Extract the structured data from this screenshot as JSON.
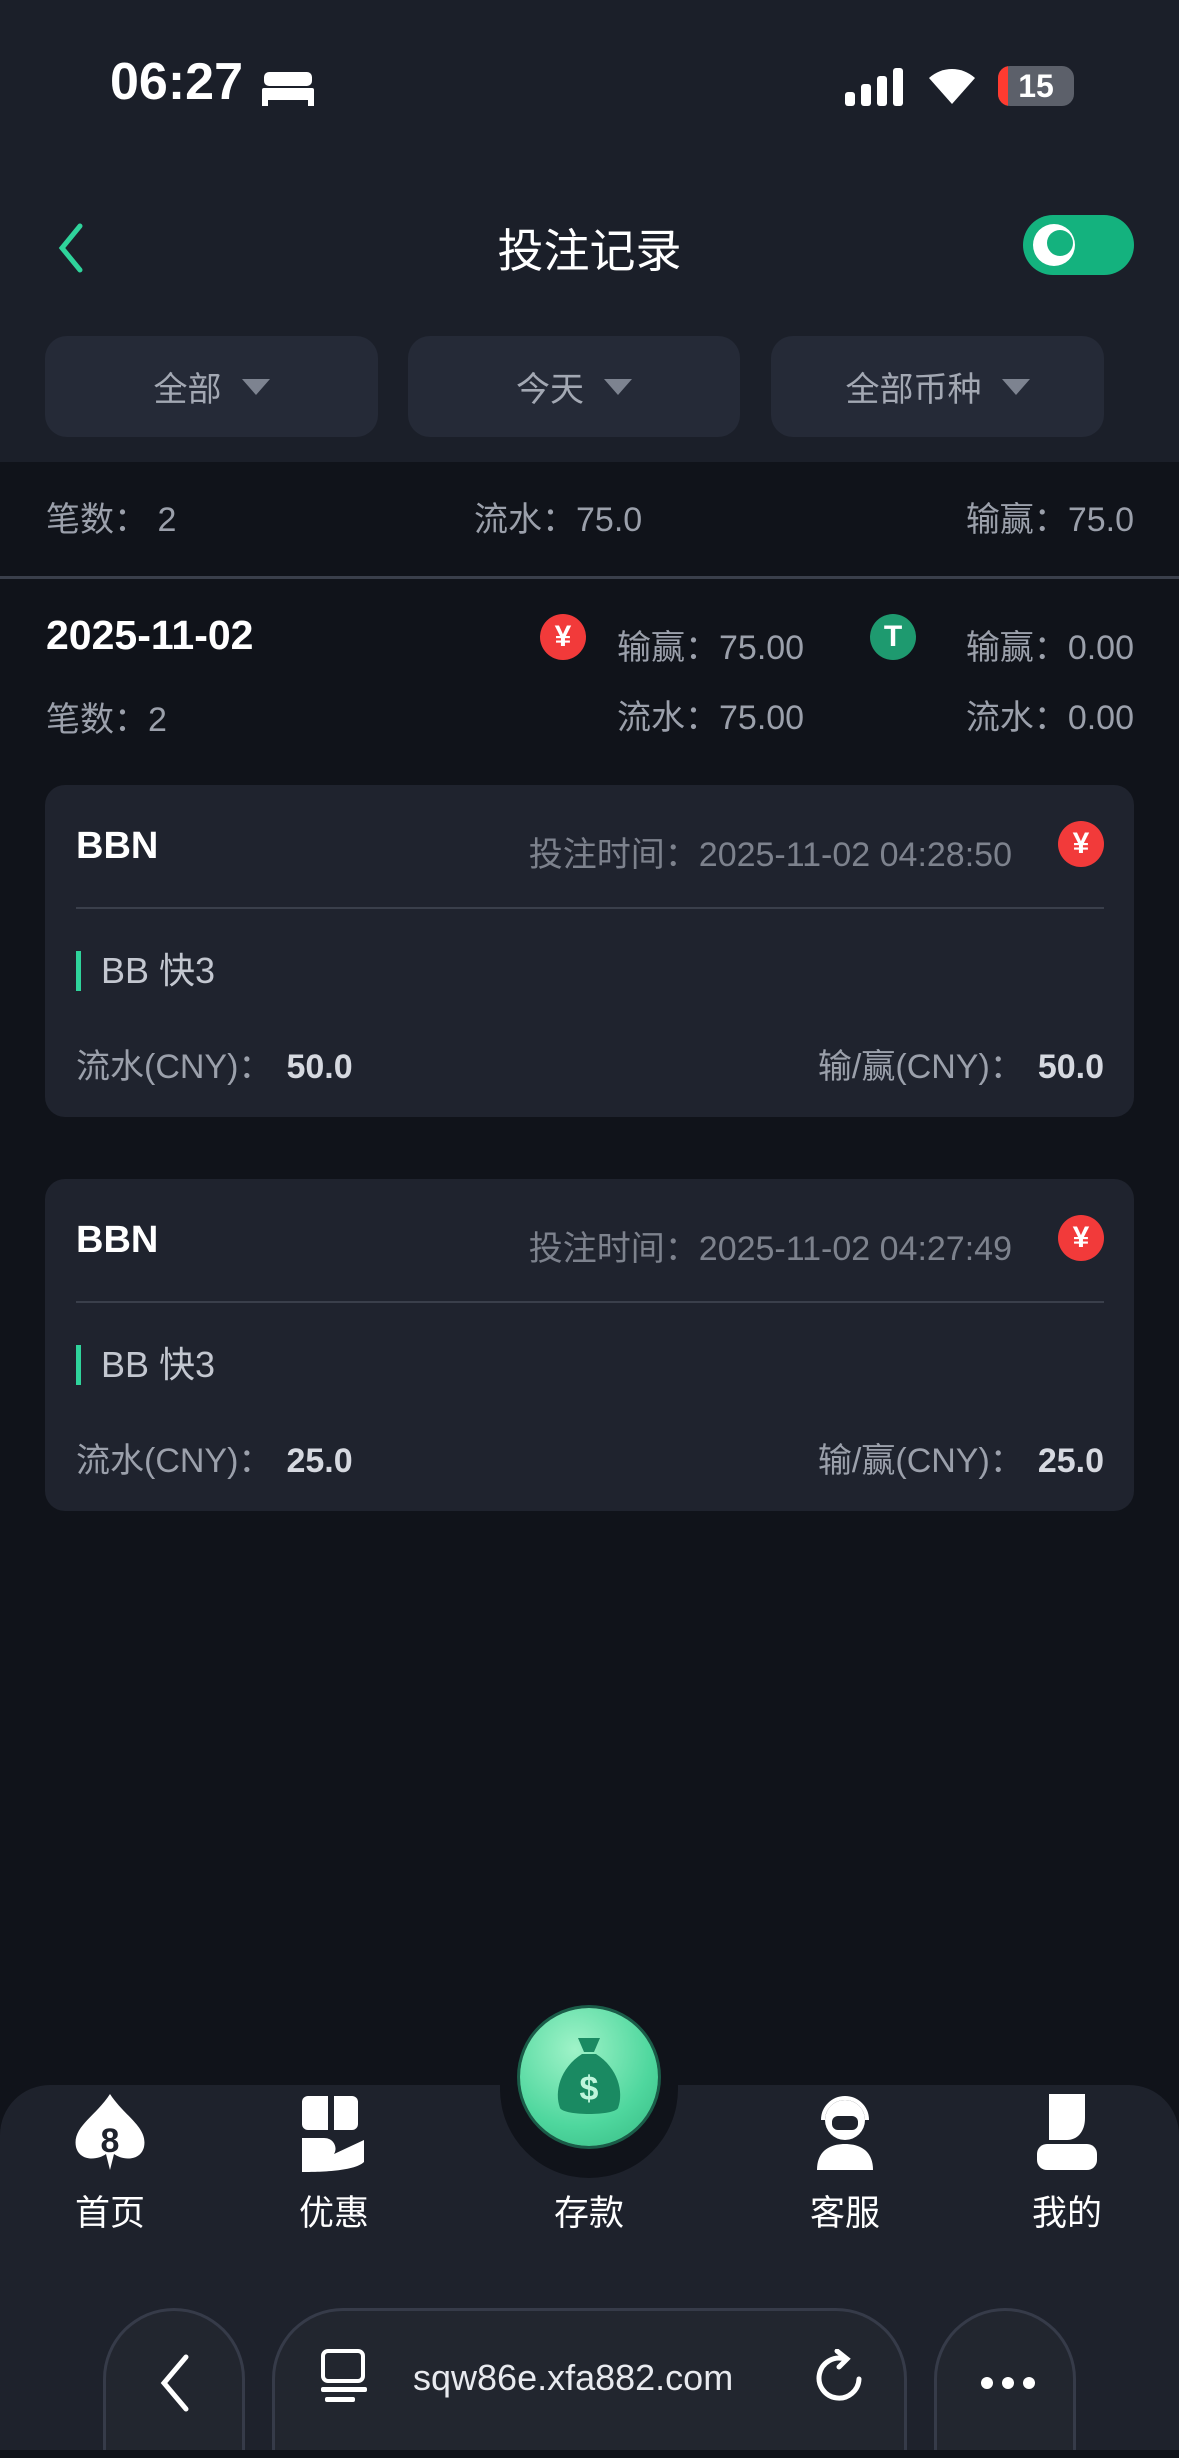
{
  "status_bar": {
    "time": "06:27",
    "battery": "15"
  },
  "header": {
    "title": "投注记录",
    "theme_toggle": "dark"
  },
  "filters": [
    {
      "label": "全部"
    },
    {
      "label": "今天"
    },
    {
      "label": "全部币种"
    }
  ],
  "summary": {
    "count_label": "笔数：",
    "count": "2",
    "flow_label": "流水：",
    "flow": "75.0",
    "win_label": "输赢：",
    "win": "75.0"
  },
  "day": {
    "date": "2025-11-02",
    "count_label": "笔数：",
    "count": "2",
    "cny": {
      "win_label": "输赢：",
      "win": "75.00",
      "flow_label": "流水：",
      "flow": "75.00",
      "symbol": "¥"
    },
    "usdt": {
      "win_label": "输赢：",
      "win": "0.00",
      "flow_label": "流水：",
      "flow": "0.00",
      "symbol": "T"
    }
  },
  "records": [
    {
      "platform": "BBN",
      "time_label": "投注时间：",
      "time": "2025-11-02 04:28:50",
      "currency_symbol": "¥",
      "game": "BB 快3",
      "flow_label": "流水(CNY)：",
      "flow": "50.0",
      "win_label": "输/赢(CNY)：",
      "win": "50.0"
    },
    {
      "platform": "BBN",
      "time_label": "投注时间：",
      "time": "2025-11-02 04:27:49",
      "currency_symbol": "¥",
      "game": "BB 快3",
      "flow_label": "流水(CNY)：",
      "flow": "25.0",
      "win_label": "输/赢(CNY)：",
      "win": "25.0"
    }
  ],
  "bottom_nav": [
    {
      "label": "首页",
      "icon": "spade-8-icon"
    },
    {
      "label": "优惠",
      "icon": "gift-hand-icon"
    },
    {
      "label": "存款",
      "icon": "money-bag-icon"
    },
    {
      "label": "客服",
      "icon": "headset-agent-icon"
    },
    {
      "label": "我的",
      "icon": "user-icon"
    }
  ],
  "browser": {
    "url": "sqw86e.xfa882.com"
  },
  "colors": {
    "accent": "#14b27e",
    "cny": "#f23a3a",
    "usdt": "#1e9a6f"
  }
}
